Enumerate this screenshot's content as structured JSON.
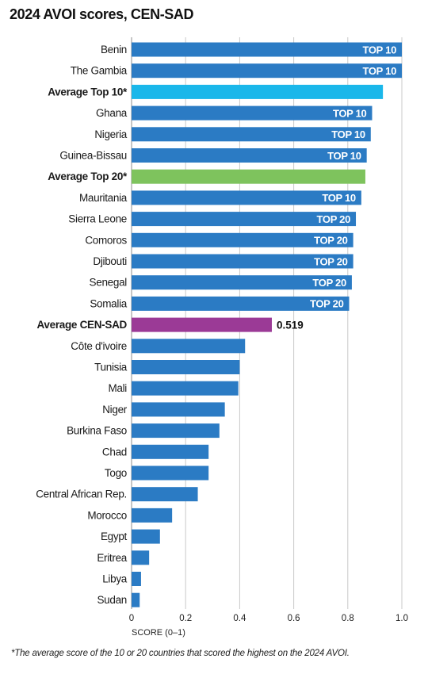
{
  "chart_data": {
    "type": "bar",
    "orientation": "horizontal",
    "title": "2024 AVOI scores, CEN-SAD",
    "xlabel": "SCORE (0–1)",
    "xlim": [
      0,
      1.0
    ],
    "xticks": [
      "0",
      "0.2",
      "0.4",
      "0.6",
      "0.8",
      "1.0"
    ],
    "grid": true,
    "colors": {
      "country": "#2b7bc4",
      "avg_top10": "#1ab7ea",
      "avg_top20": "#7ec35d",
      "avg_censad": "#9b3a96"
    },
    "bars": [
      {
        "label": "Benin",
        "value": 1.0,
        "kind": "country",
        "tag": "TOP 10"
      },
      {
        "label": "The Gambia",
        "value": 1.0,
        "kind": "country",
        "tag": "TOP 10"
      },
      {
        "label": "Average Top 10*",
        "value": 0.93,
        "kind": "avg_top10",
        "bold": true
      },
      {
        "label": "Ghana",
        "value": 0.89,
        "kind": "country",
        "tag": "TOP 10"
      },
      {
        "label": "Nigeria",
        "value": 0.885,
        "kind": "country",
        "tag": "TOP 10"
      },
      {
        "label": "Guinea-Bissau",
        "value": 0.87,
        "kind": "country",
        "tag": "TOP 10"
      },
      {
        "label": "Average Top 20*",
        "value": 0.865,
        "kind": "avg_top20",
        "bold": true
      },
      {
        "label": "Mauritania",
        "value": 0.85,
        "kind": "country",
        "tag": "TOP 10"
      },
      {
        "label": "Sierra Leone",
        "value": 0.83,
        "kind": "country",
        "tag": "TOP 20"
      },
      {
        "label": "Comoros",
        "value": 0.82,
        "kind": "country",
        "tag": "TOP 20"
      },
      {
        "label": "Djibouti",
        "value": 0.82,
        "kind": "country",
        "tag": "TOP 20"
      },
      {
        "label": "Senegal",
        "value": 0.815,
        "kind": "country",
        "tag": "TOP 20"
      },
      {
        "label": "Somalia",
        "value": 0.805,
        "kind": "country",
        "tag": "TOP 20"
      },
      {
        "label": "Average CEN-SAD",
        "value": 0.519,
        "kind": "avg_censad",
        "bold": true,
        "value_label": "0.519"
      },
      {
        "label": "Côte d'ivoire",
        "value": 0.42,
        "kind": "country"
      },
      {
        "label": "Tunisia",
        "value": 0.4,
        "kind": "country"
      },
      {
        "label": "Mali",
        "value": 0.395,
        "kind": "country"
      },
      {
        "label": "Niger",
        "value": 0.345,
        "kind": "country"
      },
      {
        "label": "Burkina Faso",
        "value": 0.325,
        "kind": "country"
      },
      {
        "label": "Chad",
        "value": 0.285,
        "kind": "country"
      },
      {
        "label": "Togo",
        "value": 0.285,
        "kind": "country"
      },
      {
        "label": "Central African Rep.",
        "value": 0.245,
        "kind": "country"
      },
      {
        "label": "Morocco",
        "value": 0.15,
        "kind": "country"
      },
      {
        "label": "Egypt",
        "value": 0.105,
        "kind": "country"
      },
      {
        "label": "Eritrea",
        "value": 0.065,
        "kind": "country"
      },
      {
        "label": "Libya",
        "value": 0.035,
        "kind": "country"
      },
      {
        "label": "Sudan",
        "value": 0.03,
        "kind": "country"
      }
    ],
    "footnote": "*The average score of the 10 or 20 countries that scored the highest on the 2024 AVOI."
  }
}
